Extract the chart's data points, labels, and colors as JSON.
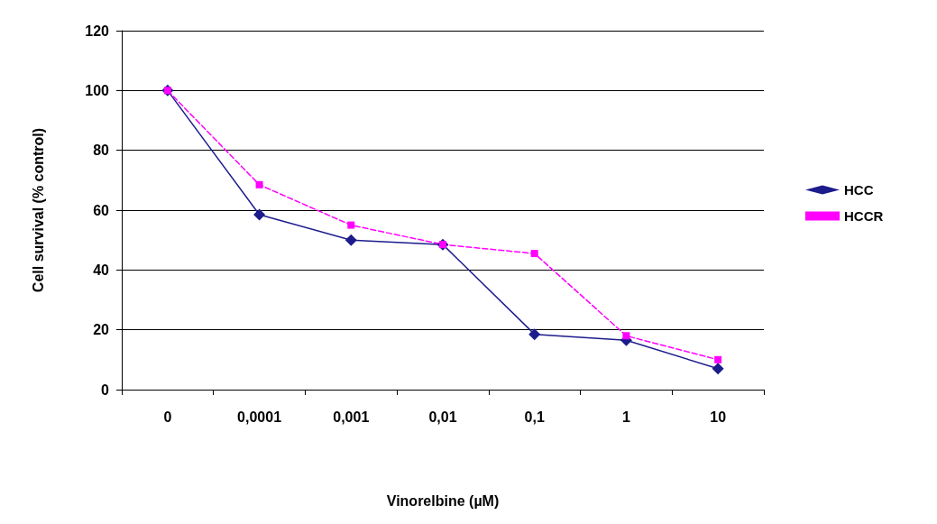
{
  "chart_data": {
    "type": "line",
    "xlabel": "Vinorelbine (µM)",
    "ylabel": "Cell survival (% control)",
    "categories": [
      "0",
      "0,0001",
      "0,001",
      "0,01",
      "0,1",
      "1",
      "10"
    ],
    "series": [
      {
        "name": "HCC",
        "color": "#1c1c8c",
        "marker": "diamond",
        "line_style": "solid",
        "values": [
          100,
          58.5,
          50,
          48.5,
          18.5,
          16.5,
          7
        ]
      },
      {
        "name": "HCCR",
        "color": "#ff00ff",
        "marker": "square",
        "line_style": "dashed",
        "values": [
          100,
          68.5,
          55,
          48.5,
          45.5,
          18,
          10
        ]
      }
    ],
    "ylim": [
      0,
      120
    ],
    "yticks": [
      0,
      20,
      40,
      60,
      80,
      100,
      120
    ],
    "grid": "y",
    "legend": "right"
  }
}
